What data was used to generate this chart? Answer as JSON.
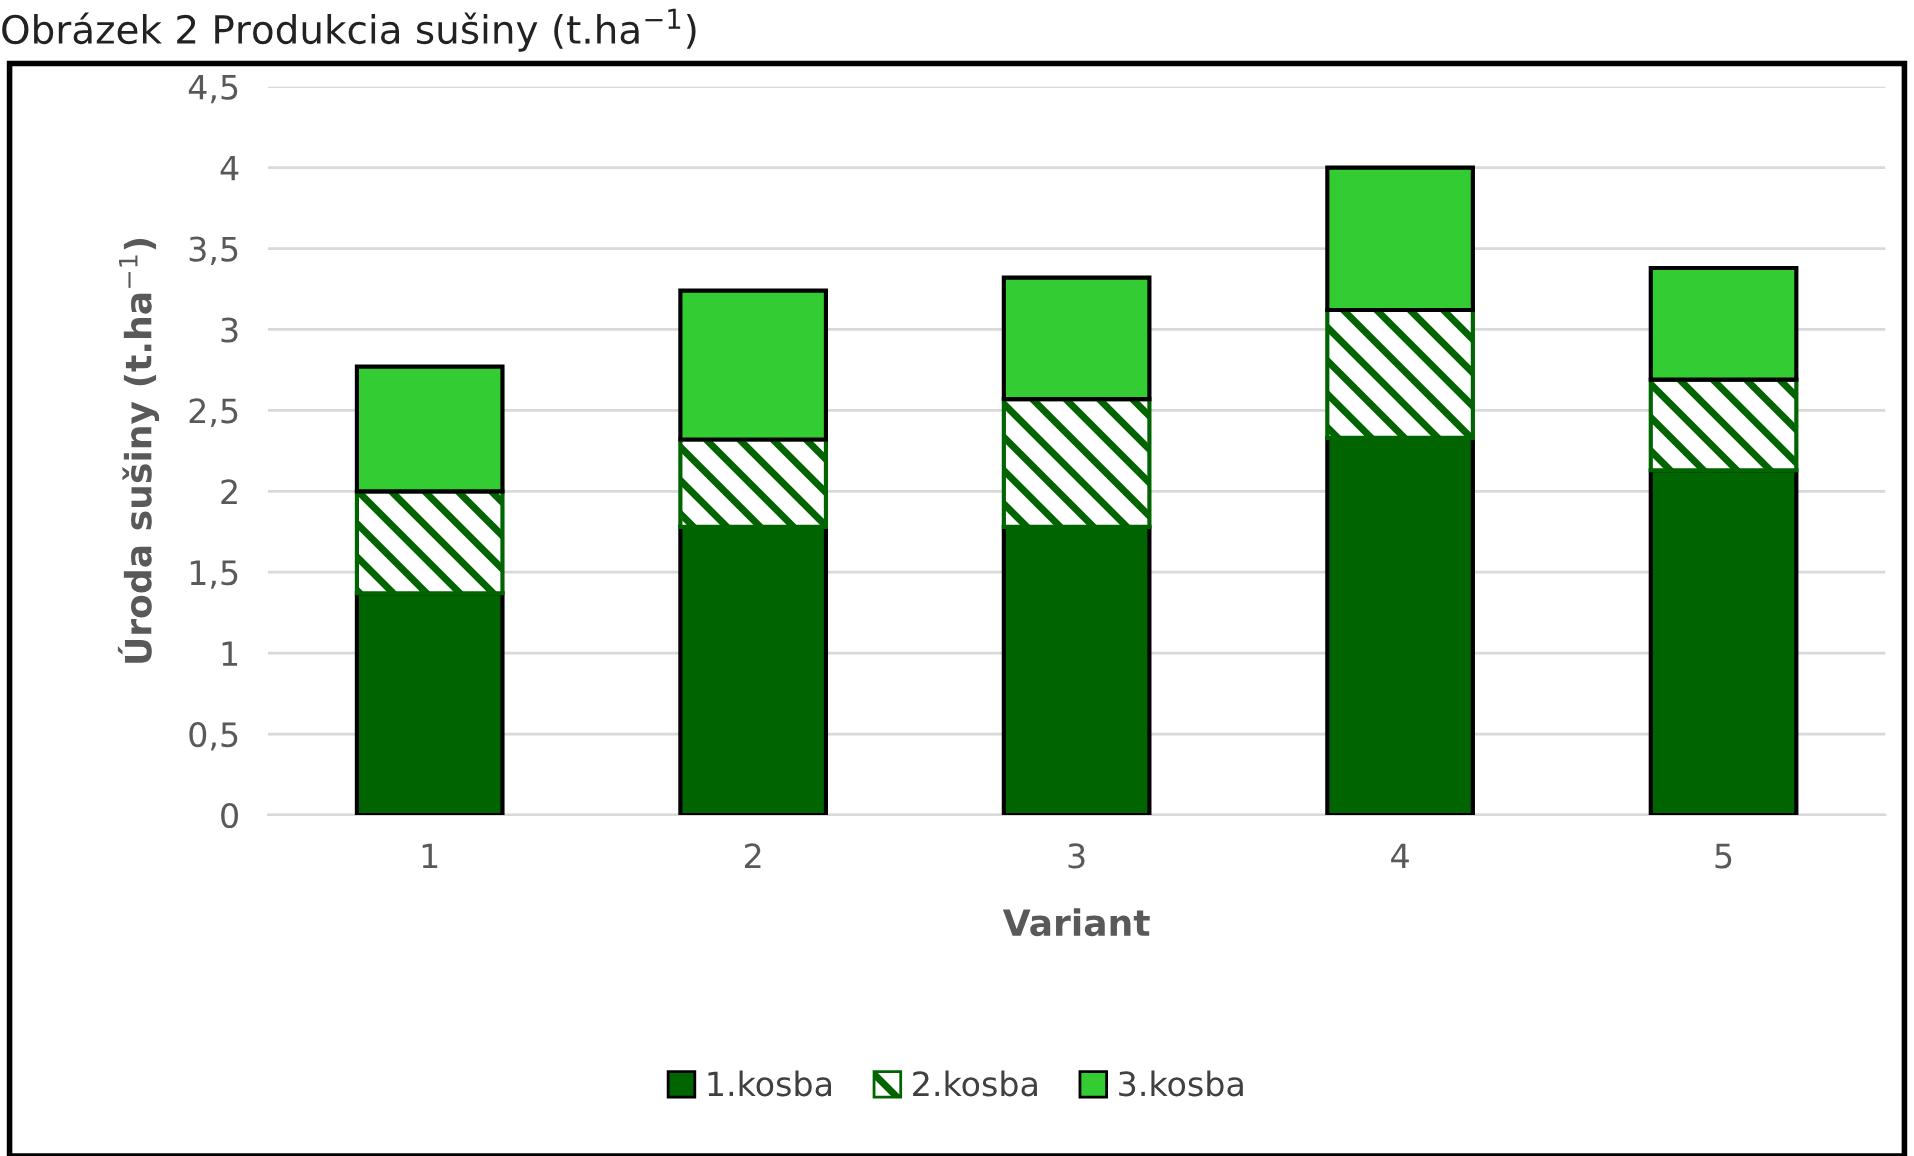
{
  "chart_data": {
    "type": "bar",
    "title": "Obrázek 2 Produkcia sušiny (t.ha$^{−1}$)",
    "xlabel": "Variant",
    "ylabel": "Úroda sušiny (t.ha$^{−1}$)",
    "categories": [
      "1",
      "2",
      "3",
      "4",
      "5"
    ],
    "stacked": true,
    "series": [
      {
        "name": "1.kosba",
        "color": "#006400",
        "values": [
          1.37,
          1.78,
          1.78,
          2.33,
          2.13
        ]
      },
      {
        "name": "2.kosba",
        "color": "#006400",
        "values": [
          0.63,
          0.54,
          0.79,
          0.79,
          0.56
        ]
      },
      {
        "name": "3.kosba",
        "color": "#33cc33",
        "values": [
          0.77,
          0.92,
          0.75,
          0.88,
          0.69
        ]
      }
    ],
    "ylim": [
      0,
      4.5
    ],
    "yticks": [
      {
        "value": 0,
        "label": "0"
      },
      {
        "value": 0.5,
        "label": "0,5"
      },
      {
        "value": 1,
        "label": "1"
      },
      {
        "value": 1.5,
        "label": "1,5"
      },
      {
        "value": 2,
        "label": "2"
      },
      {
        "value": 2.5,
        "label": "2,5"
      },
      {
        "value": 3,
        "label": "3"
      },
      {
        "value": 3.5,
        "label": "3,5"
      },
      {
        "value": 4,
        "label": "4"
      },
      {
        "value": 4.5,
        "label": "4,5"
      }
    ],
    "grid": "y",
    "legend": "bottom"
  }
}
